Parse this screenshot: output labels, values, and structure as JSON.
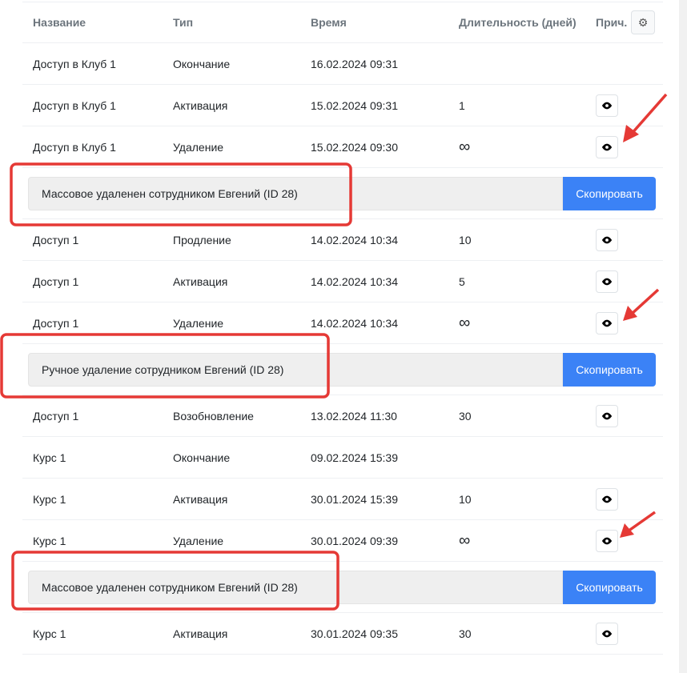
{
  "header": {
    "name": "Название",
    "type": "Тип",
    "time": "Время",
    "duration": "Длительность (дней)",
    "reason": "Прич."
  },
  "copy_label": "Скопировать",
  "rows": [
    {
      "kind": "row",
      "name": "Доступ в Клуб 1",
      "type": "Окончание",
      "time": "16.02.2024 09:31",
      "duration": "",
      "eye": false
    },
    {
      "kind": "row",
      "name": "Доступ в Клуб 1",
      "type": "Активация",
      "time": "15.02.2024 09:31",
      "duration": "1",
      "eye": true
    },
    {
      "kind": "row",
      "name": "Доступ в Клуб 1",
      "type": "Удаление",
      "time": "15.02.2024 09:30",
      "duration": "∞",
      "eye": true
    },
    {
      "kind": "reason",
      "text": "Массовое удаленен сотрудником Евгений (ID 28)"
    },
    {
      "kind": "row",
      "name": "Доступ 1",
      "type": "Продление",
      "time": "14.02.2024 10:34",
      "duration": "10",
      "eye": true
    },
    {
      "kind": "row",
      "name": "Доступ 1",
      "type": "Активация",
      "time": "14.02.2024 10:34",
      "duration": "5",
      "eye": true
    },
    {
      "kind": "row",
      "name": "Доступ 1",
      "type": "Удаление",
      "time": "14.02.2024 10:34",
      "duration": "∞",
      "eye": true
    },
    {
      "kind": "reason",
      "text": "Ручное удаление сотрудником Евгений (ID 28)"
    },
    {
      "kind": "row",
      "name": "Доступ 1",
      "type": "Возобновление",
      "time": "13.02.2024 11:30",
      "duration": "30",
      "eye": true
    },
    {
      "kind": "row",
      "name": "Курс 1",
      "type": "Окончание",
      "time": "09.02.2024 15:39",
      "duration": "",
      "eye": false
    },
    {
      "kind": "row",
      "name": "Курс 1",
      "type": "Активация",
      "time": "30.01.2024 15:39",
      "duration": "10",
      "eye": true
    },
    {
      "kind": "row",
      "name": "Курс 1",
      "type": "Удаление",
      "time": "30.01.2024 09:39",
      "duration": "∞",
      "eye": true
    },
    {
      "kind": "reason",
      "text": "Массовое удаленен сотрудником Евгений (ID 28)"
    },
    {
      "kind": "row",
      "name": "Курс 1",
      "type": "Активация",
      "time": "30.01.2024 09:35",
      "duration": "30",
      "eye": true
    }
  ],
  "colors": {
    "accent": "#3b82f6",
    "annotation": "#e53935"
  }
}
